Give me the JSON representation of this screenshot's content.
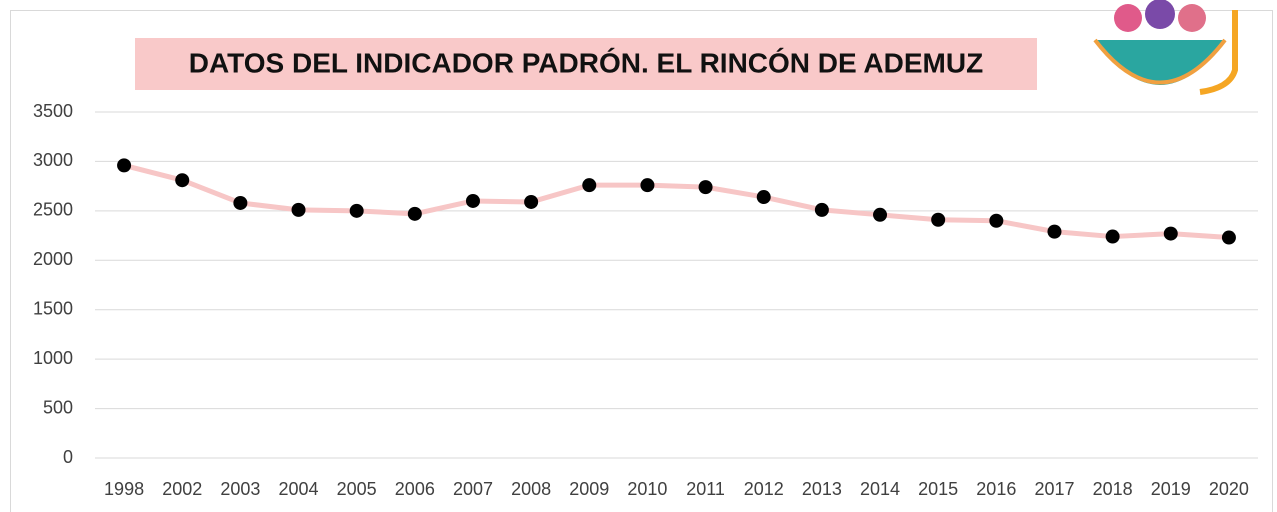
{
  "chart_data": {
    "type": "line",
    "title": "DATOS DEL INDICADOR PADRÓN. EL RINCÓN DE ADEMUZ",
    "categories": [
      "1998",
      "2002",
      "2003",
      "2004",
      "2005",
      "2006",
      "2007",
      "2008",
      "2009",
      "2010",
      "2011",
      "2012",
      "2013",
      "2014",
      "2015",
      "2016",
      "2017",
      "2018",
      "2019",
      "2020"
    ],
    "series": [
      {
        "color": "#f7c6c6",
        "values": [
          2960,
          2810,
          2580,
          2510,
          2500,
          2470,
          2600,
          2590,
          2760,
          2760,
          2740,
          2640,
          2510,
          2460,
          2410,
          2400,
          2290,
          2240,
          2270,
          2230
        ]
      }
    ],
    "ylim": [
      0,
      3500
    ],
    "yticks": [
      0,
      500,
      1000,
      1500,
      2000,
      2500,
      3000,
      3500
    ],
    "grid": true
  }
}
